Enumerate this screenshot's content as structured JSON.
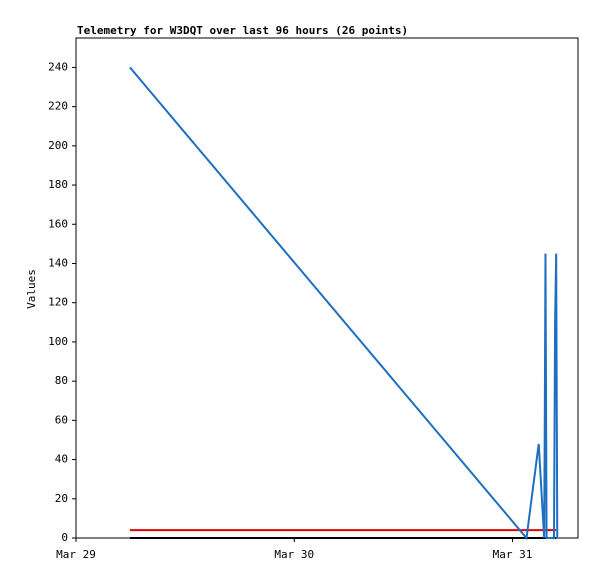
{
  "chart_data": {
    "type": "line",
    "title": "Telemetry for W3DQT over last 96 hours (26 points)",
    "y_label": "Values",
    "xlim": [
      0,
      2.3
    ],
    "xticks": [
      {
        "value": 0,
        "label": "Mar 29"
      },
      {
        "value": 1,
        "label": "Mar 30"
      },
      {
        "value": 2,
        "label": "Mar 31"
      }
    ],
    "ylim": [
      0,
      255
    ],
    "yticks": [
      0,
      20,
      40,
      60,
      80,
      100,
      120,
      140,
      160,
      180,
      200,
      220,
      240
    ],
    "series": [
      {
        "color": "#000000",
        "x": [
          0.247,
          2.2
        ],
        "values": [
          0,
          0
        ]
      },
      {
        "color": "#e00000",
        "x": [
          0.247,
          2.2
        ],
        "values": [
          4,
          4
        ]
      },
      {
        "color": "#1f6fc0",
        "x": [
          0.247,
          2.064,
          2.12,
          2.145,
          2.148,
          2.151,
          2.156,
          2.19,
          2.195,
          2.2,
          2.205
        ],
        "values": [
          240,
          0,
          48,
          0,
          65,
          145,
          0,
          0,
          110,
          145,
          0
        ]
      }
    ]
  }
}
